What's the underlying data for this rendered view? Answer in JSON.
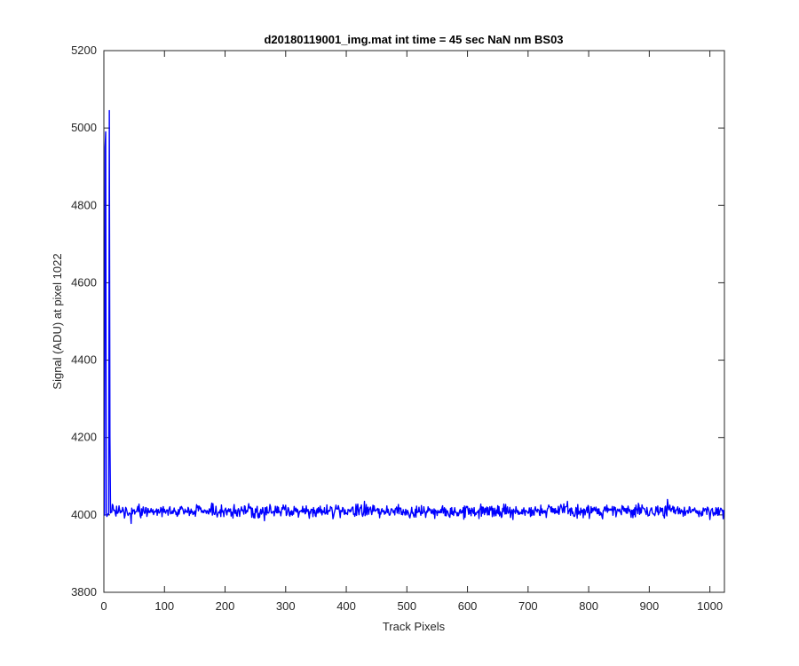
{
  "chart_data": {
    "type": "line",
    "title": "d20180119001_img.mat int time = 45 sec  NaN nm BS03",
    "xlabel": "Track Pixels",
    "ylabel": "Signal (ADU) at pixel 1022",
    "xlim": [
      0,
      1024
    ],
    "ylim": [
      3800,
      5200
    ],
    "xticks": [
      0,
      100,
      200,
      300,
      400,
      500,
      600,
      700,
      800,
      900,
      1000
    ],
    "yticks": [
      3800,
      4000,
      4200,
      4400,
      4600,
      4800,
      5000,
      5200
    ],
    "grid": false,
    "legend": "none",
    "series": [
      {
        "color": "#0000ff",
        "spikes": [
          {
            "x": 1,
            "y": 3998
          },
          {
            "x": 2,
            "y": 4950
          },
          {
            "x": 3,
            "y": 4990
          },
          {
            "x": 4,
            "y": 4005
          },
          {
            "x": 5,
            "y": 3996
          },
          {
            "x": 6,
            "y": 4000
          },
          {
            "x": 7,
            "y": 4003
          },
          {
            "x": 8,
            "y": 4002
          },
          {
            "x": 9,
            "y": 5045
          },
          {
            "x": 10,
            "y": 4200
          },
          {
            "x": 11,
            "y": 4005
          }
        ],
        "baseline_mean": 4010,
        "baseline_amplitude": 10,
        "baseline_start_x": 12,
        "baseline_end_x": 1024,
        "notable_points": [
          {
            "x": 45,
            "y": 3978
          },
          {
            "x": 265,
            "y": 3985
          },
          {
            "x": 300,
            "y": 4025
          },
          {
            "x": 430,
            "y": 4035
          },
          {
            "x": 765,
            "y": 4035
          },
          {
            "x": 930,
            "y": 4040
          },
          {
            "x": 1000,
            "y": 3988
          }
        ]
      }
    ]
  }
}
